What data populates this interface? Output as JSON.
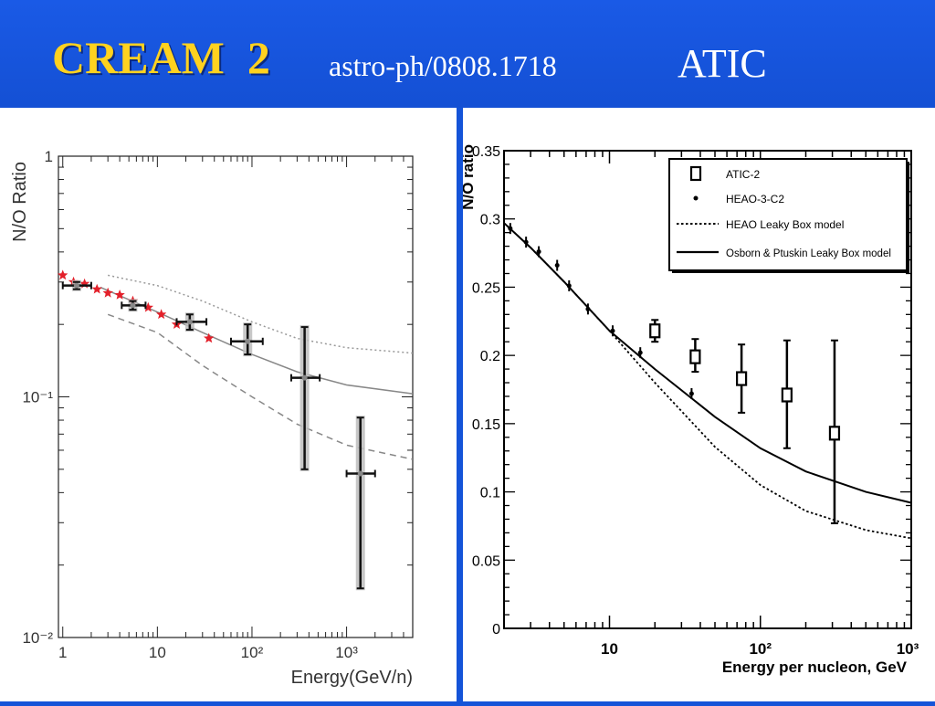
{
  "slide": {
    "title_main": "CREAM  2",
    "title_ref": "astro-ph/0808.1718",
    "title_right": "ATIC"
  },
  "colors": {
    "background": "#1554d8",
    "title_main": "#ffd21f",
    "title_text": "#ffffff"
  },
  "chart_data": [
    {
      "type": "scatter",
      "title": "",
      "xlabel": "Energy(GeV/n)",
      "ylabel": "N/O Ratio",
      "xscale": "log",
      "yscale": "log",
      "xlim": [
        0.9,
        5000
      ],
      "ylim": [
        0.01,
        1
      ],
      "x_tick_labels": [
        {
          "value": 1,
          "label": "1"
        },
        {
          "value": 10,
          "label": "10"
        },
        {
          "value": 100,
          "label": "10²"
        },
        {
          "value": 1000,
          "label": "10³"
        }
      ],
      "y_tick_labels": [
        {
          "value": 1,
          "label": "1"
        },
        {
          "value": 0.1,
          "label": "10⁻¹"
        },
        {
          "value": 0.01,
          "label": "10⁻²"
        }
      ],
      "grid": false,
      "series": [
        {
          "style": "black-crosses-with-grey-band",
          "points": [
            {
              "x": 1.4,
              "y": 0.29,
              "xlo": 1.0,
              "xhi": 2.0,
              "ylo": 0.28,
              "yhi": 0.3
            },
            {
              "x": 5.5,
              "y": 0.24,
              "xlo": 4.2,
              "xhi": 7.5,
              "ylo": 0.23,
              "yhi": 0.25
            },
            {
              "x": 22,
              "y": 0.205,
              "xlo": 16,
              "xhi": 33,
              "ylo": 0.19,
              "yhi": 0.22
            },
            {
              "x": 90,
              "y": 0.17,
              "xlo": 60,
              "xhi": 130,
              "ylo": 0.15,
              "yhi": 0.2
            },
            {
              "x": 360,
              "y": 0.12,
              "xlo": 260,
              "xhi": 520,
              "ylo": 0.05,
              "yhi": 0.195
            },
            {
              "x": 1400,
              "y": 0.048,
              "xlo": 1000,
              "xhi": 2000,
              "ylo": 0.016,
              "yhi": 0.082
            }
          ]
        },
        {
          "style": "red-stars",
          "points": [
            {
              "x": 1.0,
              "y": 0.32
            },
            {
              "x": 1.3,
              "y": 0.3
            },
            {
              "x": 1.7,
              "y": 0.295
            },
            {
              "x": 2.3,
              "y": 0.28
            },
            {
              "x": 3.0,
              "y": 0.27
            },
            {
              "x": 4.0,
              "y": 0.265
            },
            {
              "x": 5.5,
              "y": 0.25
            },
            {
              "x": 8.0,
              "y": 0.235
            },
            {
              "x": 11,
              "y": 0.22
            },
            {
              "x": 16,
              "y": 0.2
            },
            {
              "x": 35,
              "y": 0.175
            }
          ]
        },
        {
          "style": "solid-grey-line",
          "points": [
            {
              "x": 2.5,
              "y": 0.285
            },
            {
              "x": 10,
              "y": 0.225
            },
            {
              "x": 30,
              "y": 0.185
            },
            {
              "x": 100,
              "y": 0.15
            },
            {
              "x": 300,
              "y": 0.127
            },
            {
              "x": 1000,
              "y": 0.112
            },
            {
              "x": 5000,
              "y": 0.103
            }
          ]
        },
        {
          "style": "dotted-grey-line",
          "points": [
            {
              "x": 3,
              "y": 0.32
            },
            {
              "x": 10,
              "y": 0.29
            },
            {
              "x": 30,
              "y": 0.25
            },
            {
              "x": 100,
              "y": 0.205
            },
            {
              "x": 300,
              "y": 0.175
            },
            {
              "x": 1000,
              "y": 0.16
            },
            {
              "x": 5000,
              "y": 0.152
            }
          ]
        },
        {
          "style": "dashed-grey-line",
          "points": [
            {
              "x": 3,
              "y": 0.22
            },
            {
              "x": 10,
              "y": 0.185
            },
            {
              "x": 30,
              "y": 0.135
            },
            {
              "x": 100,
              "y": 0.1
            },
            {
              "x": 300,
              "y": 0.077
            },
            {
              "x": 1000,
              "y": 0.063
            },
            {
              "x": 5000,
              "y": 0.055
            }
          ]
        }
      ]
    },
    {
      "type": "scatter",
      "title": "",
      "xlabel": "Energy per nucleon, GeV",
      "ylabel": "N/O ratio",
      "xscale": "log",
      "yscale": "linear",
      "xlim": [
        2,
        1000
      ],
      "ylim": [
        0,
        0.35
      ],
      "x_tick_labels": [
        {
          "value": 10,
          "label": "10"
        },
        {
          "value": 100,
          "label": "10²"
        },
        {
          "value": 1000,
          "label": "10³"
        }
      ],
      "y_tick_labels": [
        {
          "value": 0,
          "label": "0"
        },
        {
          "value": 0.05,
          "label": "0.05"
        },
        {
          "value": 0.1,
          "label": "0.1"
        },
        {
          "value": 0.15,
          "label": "0.15"
        },
        {
          "value": 0.2,
          "label": "0.2"
        },
        {
          "value": 0.25,
          "label": "0.25"
        },
        {
          "value": 0.3,
          "label": "0.3"
        },
        {
          "value": 0.35,
          "label": "0.35"
        }
      ],
      "grid": false,
      "legend_position": "top-right",
      "series": [
        {
          "name": "ATIC-2",
          "style": "open-square",
          "points": [
            {
              "x": 20,
              "y": 0.218,
              "ylo": 0.21,
              "yhi": 0.226
            },
            {
              "x": 37,
              "y": 0.199,
              "ylo": 0.188,
              "yhi": 0.212
            },
            {
              "x": 75,
              "y": 0.183,
              "ylo": 0.158,
              "yhi": 0.208
            },
            {
              "x": 150,
              "y": 0.171,
              "ylo": 0.132,
              "yhi": 0.211
            },
            {
              "x": 310,
              "y": 0.143,
              "ylo": 0.077,
              "yhi": 0.211
            }
          ]
        },
        {
          "name": "HEAO-3-C2",
          "style": "small-dot",
          "points": [
            {
              "x": 2.2,
              "y": 0.293
            },
            {
              "x": 2.8,
              "y": 0.283
            },
            {
              "x": 3.4,
              "y": 0.276
            },
            {
              "x": 4.5,
              "y": 0.266
            },
            {
              "x": 5.4,
              "y": 0.251
            },
            {
              "x": 7.2,
              "y": 0.234
            },
            {
              "x": 10.5,
              "y": 0.218
            },
            {
              "x": 16,
              "y": 0.202
            },
            {
              "x": 35,
              "y": 0.172
            }
          ]
        },
        {
          "name": "HEAO Leaky Box model",
          "style": "dotted-line",
          "points": [
            {
              "x": 2,
              "y": 0.297
            },
            {
              "x": 3,
              "y": 0.279
            },
            {
              "x": 5,
              "y": 0.254
            },
            {
              "x": 10,
              "y": 0.218
            },
            {
              "x": 20,
              "y": 0.18
            },
            {
              "x": 50,
              "y": 0.133
            },
            {
              "x": 100,
              "y": 0.105
            },
            {
              "x": 200,
              "y": 0.086
            },
            {
              "x": 500,
              "y": 0.072
            },
            {
              "x": 1000,
              "y": 0.066
            }
          ]
        },
        {
          "name": "Osborn & Ptuskin Leaky Box model",
          "style": "solid-line",
          "points": [
            {
              "x": 2,
              "y": 0.297
            },
            {
              "x": 3,
              "y": 0.279
            },
            {
              "x": 5,
              "y": 0.254
            },
            {
              "x": 10,
              "y": 0.218
            },
            {
              "x": 20,
              "y": 0.19
            },
            {
              "x": 50,
              "y": 0.155
            },
            {
              "x": 100,
              "y": 0.132
            },
            {
              "x": 200,
              "y": 0.115
            },
            {
              "x": 500,
              "y": 0.1
            },
            {
              "x": 1000,
              "y": 0.092
            }
          ]
        }
      ]
    }
  ]
}
